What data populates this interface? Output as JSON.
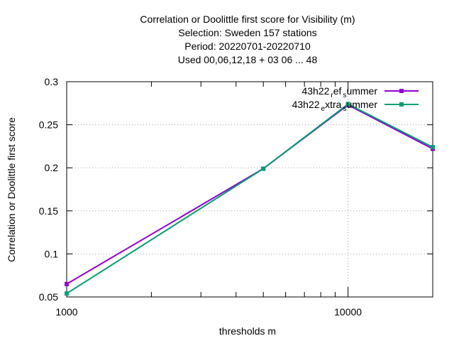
{
  "chart_data": {
    "type": "line",
    "title_lines": [
      "Correlation or Doolittle first score  for Visibility (m)",
      "Selection: Sweden    157 stations",
      "Period: 20220701-20220710",
      "Used  00,06,12,18  + 03 06 ... 48"
    ],
    "xlabel": "thresholds m",
    "ylabel": "Correlation or Doolittle first score",
    "x_scale": "log",
    "xlim": [
      1000,
      20000
    ],
    "ylim": [
      0.05,
      0.3
    ],
    "x_ticks": [
      {
        "value": 1000,
        "label": "1000"
      },
      {
        "value": 10000,
        "label": "10000"
      }
    ],
    "y_ticks": [
      {
        "value": 0.05,
        "label": "0.05"
      },
      {
        "value": 0.1,
        "label": "0.1"
      },
      {
        "value": 0.15,
        "label": "0.15"
      },
      {
        "value": 0.2,
        "label": "0.2"
      },
      {
        "value": 0.25,
        "label": "0.25"
      },
      {
        "value": 0.3,
        "label": "0.3"
      }
    ],
    "grid": true,
    "legend_position": "top-right",
    "series": [
      {
        "legend_parts": [
          "43h22",
          "r",
          "ef",
          "s",
          "ummer"
        ],
        "color": "#9400d3",
        "points": [
          {
            "x": 1000,
            "y": 0.065
          },
          {
            "x": 5000,
            "y": 0.199
          },
          {
            "x": 10000,
            "y": 0.273
          },
          {
            "x": 20000,
            "y": 0.222
          }
        ]
      },
      {
        "legend_parts": [
          "43h22",
          "e",
          "xtra",
          "s",
          "ummer"
        ],
        "color": "#009e73",
        "points": [
          {
            "x": 1000,
            "y": 0.054
          },
          {
            "x": 5000,
            "y": 0.199
          },
          {
            "x": 10000,
            "y": 0.274
          },
          {
            "x": 20000,
            "y": 0.224
          }
        ]
      }
    ]
  }
}
